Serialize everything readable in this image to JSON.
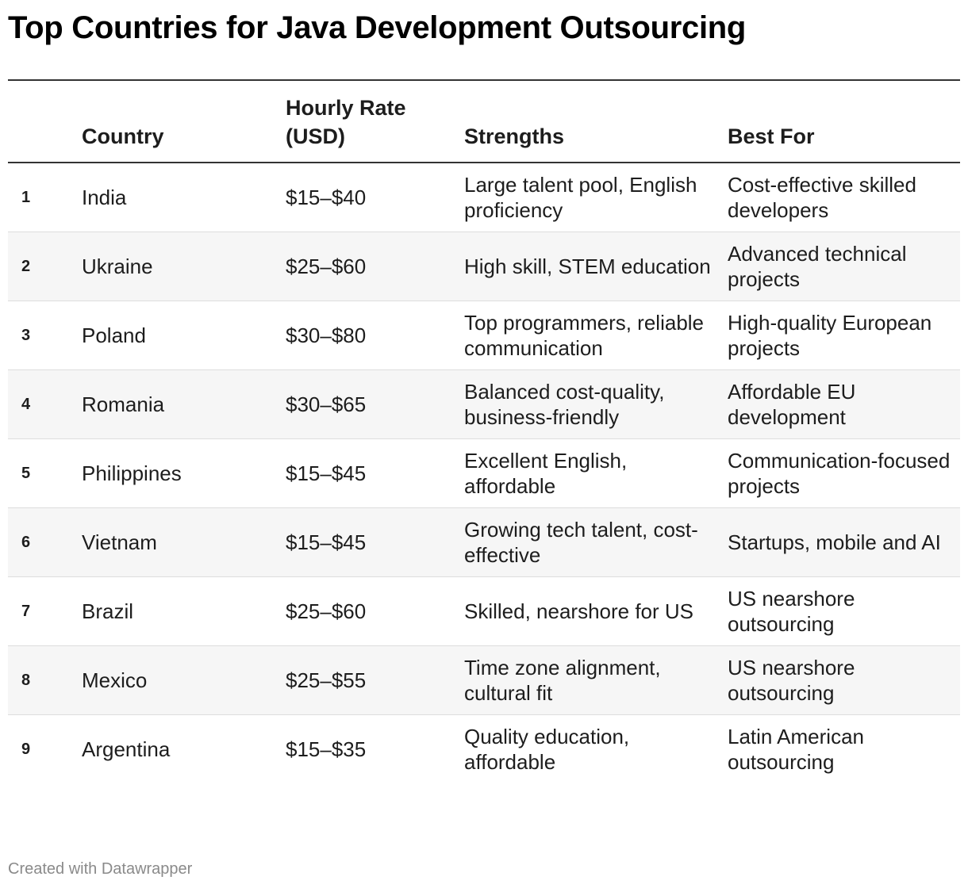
{
  "title": "Top Countries for Java Development Outsourcing",
  "footer": "Created with Datawrapper",
  "chart_data": {
    "type": "table",
    "title": "Top Countries for Java Development Outsourcing",
    "columns": [
      "",
      "Country",
      "Hourly Rate (USD)",
      "Strengths",
      "Best For"
    ],
    "rows": [
      {
        "rank": "1",
        "country": "India",
        "rate": "$15–$40",
        "strengths": "Large talent pool, English proficiency",
        "best_for": "Cost-effective skilled developers"
      },
      {
        "rank": "2",
        "country": "Ukraine",
        "rate": "$25–$60",
        "strengths": "High skill, STEM education",
        "best_for": "Advanced technical projects"
      },
      {
        "rank": "3",
        "country": "Poland",
        "rate": "$30–$80",
        "strengths": "Top programmers, reliable communication",
        "best_for": "High-quality European projects"
      },
      {
        "rank": "4",
        "country": "Romania",
        "rate": "$30–$65",
        "strengths": "Balanced cost-quality, business-friendly",
        "best_for": "Affordable EU development"
      },
      {
        "rank": "5",
        "country": "Philippines",
        "rate": "$15–$45",
        "strengths": "Excellent English, affordable",
        "best_for": "Communication-focused projects"
      },
      {
        "rank": "6",
        "country": "Vietnam",
        "rate": "$15–$45",
        "strengths": "Growing tech talent, cost-effective",
        "best_for": "Startups, mobile and AI"
      },
      {
        "rank": "7",
        "country": "Brazil",
        "rate": "$25–$60",
        "strengths": "Skilled, nearshore for US",
        "best_for": "US nearshore outsourcing"
      },
      {
        "rank": "8",
        "country": "Mexico",
        "rate": "$25–$55",
        "strengths": "Time zone alignment, cultural fit",
        "best_for": "US nearshore outsourcing"
      },
      {
        "rank": "9",
        "country": "Argentina",
        "rate": "$15–$35",
        "strengths": "Quality education, affordable",
        "best_for": "Latin American outsourcing"
      }
    ]
  }
}
